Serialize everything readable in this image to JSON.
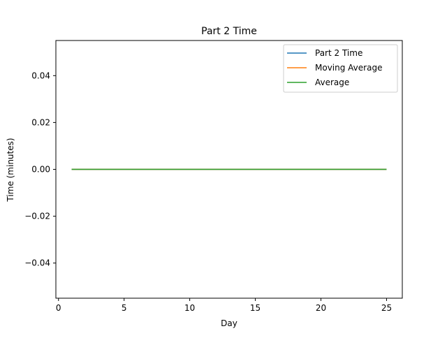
{
  "chart_data": {
    "type": "line",
    "title": "Part 2 Time",
    "xlabel": "Day",
    "ylabel": "Time (minutes)",
    "xlim": [
      -0.2,
      26.2
    ],
    "ylim": [
      -0.055,
      0.055
    ],
    "xticks": [
      0,
      5,
      10,
      15,
      20,
      25
    ],
    "xtick_labels": [
      "0",
      "5",
      "10",
      "15",
      "20",
      "25"
    ],
    "yticks": [
      -0.04,
      -0.02,
      0.0,
      0.02,
      0.04
    ],
    "ytick_labels": [
      "−0.04",
      "−0.02",
      "0.00",
      "0.02",
      "0.04"
    ],
    "grid": false,
    "legend_position": "top-right",
    "x": [
      1,
      2,
      3,
      4,
      5,
      6,
      7,
      8,
      9,
      10,
      11,
      12,
      13,
      14,
      15,
      16,
      17,
      18,
      19,
      20,
      21,
      22,
      23,
      24,
      25
    ],
    "series": [
      {
        "name": "Part 2 Time",
        "color": "#1f77b4",
        "values": [
          0,
          0,
          0,
          0,
          0,
          0,
          0,
          0,
          0,
          0,
          0,
          0,
          0,
          0,
          0,
          0,
          0,
          0,
          0,
          0,
          0,
          0,
          0,
          0,
          0
        ]
      },
      {
        "name": "Moving Average",
        "color": "#ff7f0e",
        "values": [
          0,
          0,
          0,
          0,
          0,
          0,
          0,
          0,
          0,
          0,
          0,
          0,
          0,
          0,
          0,
          0,
          0,
          0,
          0,
          0,
          0,
          0,
          0,
          0,
          0
        ]
      },
      {
        "name": "Average",
        "color": "#2ca02c",
        "values": [
          0,
          0,
          0,
          0,
          0,
          0,
          0,
          0,
          0,
          0,
          0,
          0,
          0,
          0,
          0,
          0,
          0,
          0,
          0,
          0,
          0,
          0,
          0,
          0,
          0
        ]
      }
    ]
  }
}
